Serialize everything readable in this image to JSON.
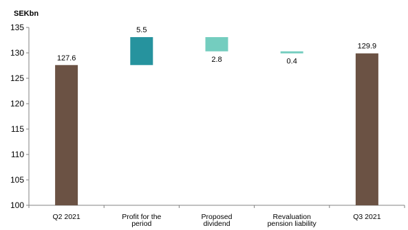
{
  "chart_data": {
    "type": "bar",
    "subtype": "waterfall",
    "unit_label": "SEKbn",
    "ylim": [
      100,
      135
    ],
    "yticks": [
      100,
      105,
      110,
      115,
      120,
      125,
      130,
      135
    ],
    "grid": false,
    "categories": [
      [
        "Q2 2021"
      ],
      [
        "Profit for the",
        "period"
      ],
      [
        "Proposed",
        "dividend"
      ],
      [
        "Revaluation",
        "pension liability"
      ],
      [
        "Q3 2021"
      ]
    ],
    "bars": [
      {
        "kind": "total",
        "from": 100,
        "to": 127.6,
        "label": "127.6",
        "color": "#6b5244"
      },
      {
        "kind": "increase",
        "from": 127.6,
        "to": 133.1,
        "label": "5.5",
        "color": "#26939e"
      },
      {
        "kind": "decrease",
        "from": 133.1,
        "to": 130.3,
        "label": "2.8",
        "color": "#74cdbf"
      },
      {
        "kind": "decrease",
        "from": 130.3,
        "to": 129.9,
        "label": "0.4",
        "color": "#74cdbf"
      },
      {
        "kind": "total",
        "from": 100,
        "to": 129.9,
        "label": "129.9",
        "color": "#6b5244"
      }
    ]
  }
}
